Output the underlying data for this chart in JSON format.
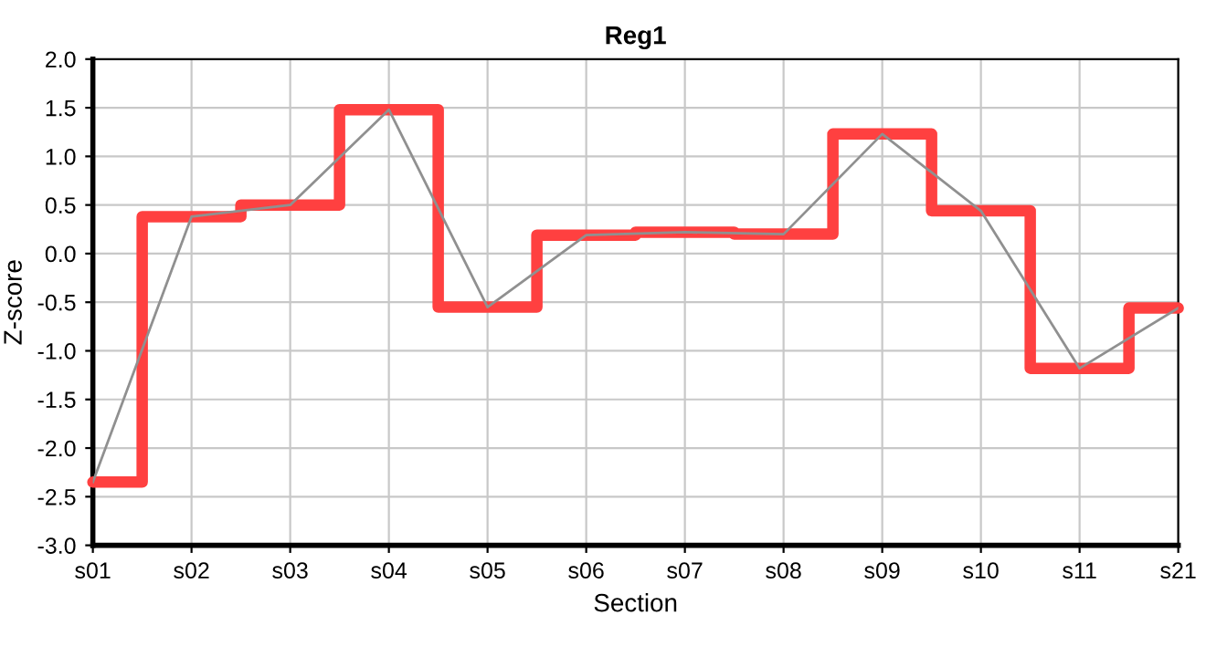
{
  "chart_data": {
    "type": "step",
    "title": "Reg1",
    "xlabel": "Section",
    "ylabel": "Z-score",
    "categories": [
      "s01",
      "s02",
      "s03",
      "s04",
      "s05",
      "s06",
      "s07",
      "s08",
      "s09",
      "s10",
      "s11",
      "s21"
    ],
    "series": [
      {
        "color": "#ff4040",
        "values": [
          -2.35,
          0.38,
          0.5,
          1.48,
          -0.55,
          0.19,
          0.22,
          0.2,
          1.23,
          0.44,
          -1.18,
          -0.56
        ]
      },
      {
        "type": "line",
        "color": "#909090",
        "values": [
          -2.35,
          0.38,
          0.5,
          1.48,
          -0.55,
          0.19,
          0.22,
          0.2,
          1.23,
          0.44,
          -1.18,
          -0.56
        ]
      }
    ],
    "ylim": [
      -3.0,
      2.0
    ],
    "yticks": [
      {
        "value": -3.0,
        "label": "-3.0"
      },
      {
        "value": -2.5,
        "label": "-2.5"
      },
      {
        "value": -2.0,
        "label": "-2.0"
      },
      {
        "value": -1.5,
        "label": "-1.5"
      },
      {
        "value": -1.0,
        "label": "-1.0"
      },
      {
        "value": -0.5,
        "label": "-0.5"
      },
      {
        "value": 0.0,
        "label": "0.0"
      },
      {
        "value": 0.5,
        "label": "0.5"
      },
      {
        "value": 1.0,
        "label": "1.0"
      },
      {
        "value": 1.5,
        "label": "1.5"
      },
      {
        "value": 2.0,
        "label": "2.0"
      }
    ],
    "grid": true,
    "legend": false
  }
}
